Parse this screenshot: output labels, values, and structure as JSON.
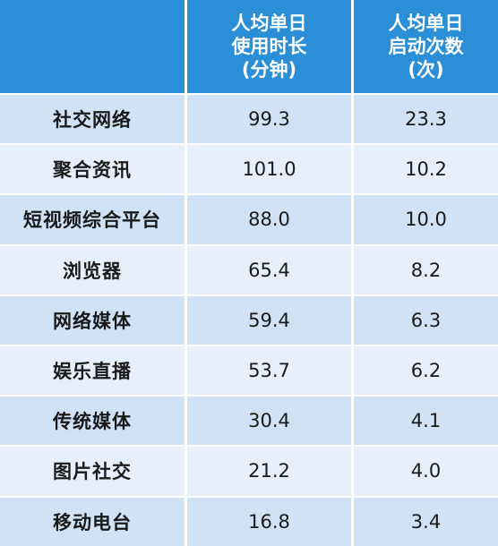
{
  "chart_data": {
    "type": "table",
    "columns": [
      "",
      "人均单日\n使用时长\n(分钟)",
      "人均单日\n启动次数\n(次)"
    ],
    "header_lines": [
      [],
      [
        "人均单日",
        "使用时长",
        "(分钟)"
      ],
      [
        "人均单日",
        "启动次数",
        "(次)"
      ]
    ],
    "rows": [
      {
        "name": "社交网络",
        "usage_minutes": "99.3",
        "launches": "23.3"
      },
      {
        "name": "聚合资讯",
        "usage_minutes": "101.0",
        "launches": "10.2"
      },
      {
        "name": "短视频综合平台",
        "usage_minutes": "88.0",
        "launches": "10.0"
      },
      {
        "name": "浏览器",
        "usage_minutes": "65.4",
        "launches": "8.2"
      },
      {
        "name": "网络媒体",
        "usage_minutes": "59.4",
        "launches": "6.3"
      },
      {
        "name": "娱乐直播",
        "usage_minutes": "53.7",
        "launches": "6.2"
      },
      {
        "name": "传统媒体",
        "usage_minutes": "30.4",
        "launches": "4.1"
      },
      {
        "name": "图片社交",
        "usage_minutes": "21.2",
        "launches": "4.0"
      },
      {
        "name": "移动电台",
        "usage_minutes": "16.8",
        "launches": "3.4"
      }
    ],
    "colors": {
      "header": "#2a8fd6",
      "row_dark": "#cfe2f6",
      "row_light": "#e7f0fa"
    }
  }
}
